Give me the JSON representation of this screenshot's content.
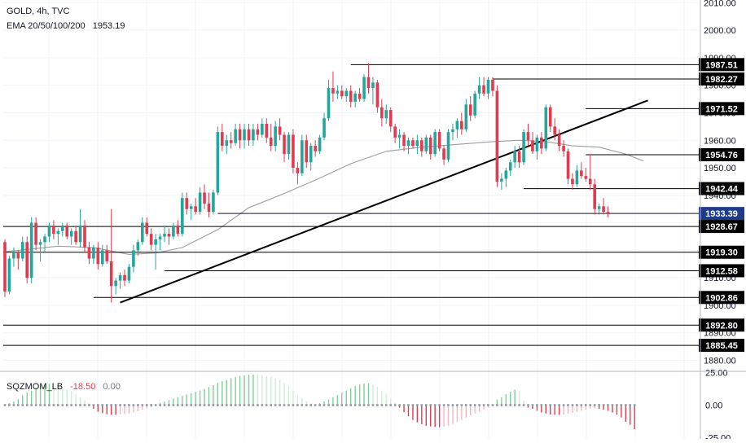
{
  "header": {
    "symbol_line": "GOLD, 4h, TVC",
    "ema_label": "EMA 20/50/100/200",
    "ema_value": "1953.19"
  },
  "oscillator": {
    "label": "SQZMOM_LB",
    "value": "-18.50",
    "value2": "0.00",
    "ticks": [
      "25.00",
      "0.00",
      "-25.00"
    ]
  },
  "colors": {
    "up": "#26a69a",
    "down": "#e23a4e",
    "ema": "#9e9e9e",
    "level": "#000000",
    "current_price_bg": "#1e3a8a",
    "osc_pos": "#80cf98",
    "osc_pos_fade": "#cdeed6",
    "osc_neg": "#e23a4e",
    "osc_neg_fade": "#f4b6c0"
  },
  "chart_data": {
    "type": "candlestick",
    "symbol": "GOLD",
    "timeframe": "4h",
    "source": "TVC",
    "ylim": [
      1876,
      2011
    ],
    "y_ticks": [
      1880,
      1890,
      1900,
      1910,
      1920,
      1930,
      1940,
      1950,
      1960,
      1970,
      1980,
      1990,
      2000,
      2010
    ],
    "grid": true,
    "candles": [
      [
        1923.0,
        1924.0,
        1903.0,
        1905.0
      ],
      [
        1905.0,
        1918.0,
        1904.0,
        1917.0
      ],
      [
        1917.0,
        1921.0,
        1914.0,
        1919.0
      ],
      [
        1919.0,
        1920.0,
        1913.0,
        1917.0
      ],
      [
        1917.0,
        1925.0,
        1916.0,
        1923.0
      ],
      [
        1923.0,
        1925.0,
        1908.0,
        1910.0
      ],
      [
        1910.0,
        1932.0,
        1908.0,
        1930.0
      ],
      [
        1930.0,
        1932.0,
        1920.0,
        1922.0
      ],
      [
        1922.0,
        1924.0,
        1916.0,
        1923.0
      ],
      [
        1923.0,
        1926.0,
        1919.0,
        1925.0
      ],
      [
        1925.0,
        1930.0,
        1923.0,
        1929.0
      ],
      [
        1929.0,
        1931.0,
        1924.0,
        1926.0
      ],
      [
        1926.0,
        1928.0,
        1922.0,
        1927.0
      ],
      [
        1927.0,
        1930.0,
        1925.0,
        1929.0
      ],
      [
        1929.0,
        1930.0,
        1924.0,
        1925.0
      ],
      [
        1925.0,
        1928.0,
        1922.0,
        1927.0
      ],
      [
        1927.0,
        1929.0,
        1922.0,
        1923.0
      ],
      [
        1923.0,
        1935.0,
        1921.0,
        1929.0
      ],
      [
        1929.0,
        1931.0,
        1919.0,
        1921.0
      ],
      [
        1921.0,
        1923.0,
        1915.0,
        1917.0
      ],
      [
        1917.0,
        1922.0,
        1915.0,
        1921.0
      ],
      [
        1921.0,
        1923.0,
        1913.0,
        1915.0
      ],
      [
        1915.0,
        1922.0,
        1914.0,
        1920.0
      ],
      [
        1920.0,
        1922.0,
        1915.0,
        1916.0
      ],
      [
        1916.0,
        1935.0,
        1901.0,
        1907.0
      ],
      [
        1907.0,
        1910.0,
        1904.0,
        1909.0
      ],
      [
        1909.0,
        1912.0,
        1906.0,
        1911.0
      ],
      [
        1911.0,
        1913.0,
        1907.0,
        1909.0
      ],
      [
        1909.0,
        1915.0,
        1908.0,
        1914.0
      ],
      [
        1914.0,
        1922.0,
        1912.0,
        1920.0
      ],
      [
        1920.0,
        1924.0,
        1918.0,
        1923.0
      ],
      [
        1923.0,
        1932.0,
        1922.0,
        1930.0
      ],
      [
        1930.0,
        1932.0,
        1925.0,
        1926.0
      ],
      [
        1926.0,
        1928.0,
        1920.0,
        1922.0
      ],
      [
        1922.0,
        1926.0,
        1913.0,
        1924.0
      ],
      [
        1924.0,
        1926.0,
        1920.0,
        1925.0
      ],
      [
        1925.0,
        1929.0,
        1923.0,
        1926.0
      ],
      [
        1926.0,
        1928.0,
        1922.0,
        1925.0
      ],
      [
        1925.0,
        1930.0,
        1924.0,
        1929.0
      ],
      [
        1929.0,
        1931.0,
        1925.0,
        1926.0
      ],
      [
        1926.0,
        1941.0,
        1925.0,
        1939.0
      ],
      [
        1939.0,
        1941.0,
        1933.0,
        1935.0
      ],
      [
        1935.0,
        1937.0,
        1931.0,
        1936.0
      ],
      [
        1936.0,
        1939.0,
        1933.0,
        1934.0
      ],
      [
        1934.0,
        1943.0,
        1933.0,
        1941.0
      ],
      [
        1941.0,
        1944.0,
        1935.0,
        1937.0
      ],
      [
        1937.0,
        1941.0,
        1932.0,
        1934.0
      ],
      [
        1934.0,
        1942.0,
        1933.0,
        1941.0
      ],
      [
        1941.0,
        1965.0,
        1940.0,
        1963.0
      ],
      [
        1963.0,
        1966.0,
        1956.0,
        1958.0
      ],
      [
        1958.0,
        1962.0,
        1955.0,
        1960.0
      ],
      [
        1960.0,
        1963.0,
        1957.0,
        1959.0
      ],
      [
        1959.0,
        1966.0,
        1958.0,
        1964.0
      ],
      [
        1964.0,
        1966.0,
        1957.0,
        1960.0
      ],
      [
        1960.0,
        1966.0,
        1957.0,
        1964.0
      ],
      [
        1964.0,
        1966.0,
        1958.0,
        1960.0
      ],
      [
        1960.0,
        1966.0,
        1958.0,
        1964.0
      ],
      [
        1964.0,
        1966.0,
        1960.0,
        1962.0
      ],
      [
        1962.0,
        1968.0,
        1961.0,
        1966.0
      ],
      [
        1966.0,
        1968.0,
        1959.0,
        1961.0
      ],
      [
        1961.0,
        1966.0,
        1956.0,
        1958.0
      ],
      [
        1958.0,
        1967.0,
        1956.0,
        1965.0
      ],
      [
        1965.0,
        1968.0,
        1960.0,
        1962.0
      ],
      [
        1962.0,
        1963.0,
        1952.0,
        1955.0
      ],
      [
        1955.0,
        1963.0,
        1953.0,
        1962.0
      ],
      [
        1962.0,
        1964.0,
        1948.0,
        1950.0
      ],
      [
        1950.0,
        1952.0,
        1944.0,
        1948.0
      ],
      [
        1948.0,
        1962.0,
        1947.0,
        1960.0
      ],
      [
        1960.0,
        1962.0,
        1950.0,
        1952.0
      ],
      [
        1952.0,
        1959.0,
        1949.0,
        1958.0
      ],
      [
        1958.0,
        1960.0,
        1954.0,
        1956.0
      ],
      [
        1956.0,
        1962.0,
        1955.0,
        1961.0
      ],
      [
        1961.0,
        1970.0,
        1960.0,
        1968.0
      ],
      [
        1968.0,
        1982.0,
        1967.0,
        1979.0
      ],
      [
        1979.0,
        1985.0,
        1974.0,
        1977.0
      ],
      [
        1977.0,
        1980.0,
        1975.0,
        1978.0
      ],
      [
        1978.0,
        1980.0,
        1975.0,
        1976.0
      ],
      [
        1976.0,
        1979.0,
        1974.0,
        1978.0
      ],
      [
        1978.0,
        1980.0,
        1972.0,
        1974.0
      ],
      [
        1974.0,
        1978.0,
        1972.0,
        1977.0
      ],
      [
        1977.0,
        1979.0,
        1974.0,
        1975.0
      ],
      [
        1975.0,
        1984.0,
        1974.0,
        1983.0
      ],
      [
        1983.0,
        1988.0,
        1977.0,
        1979.0
      ],
      [
        1979.0,
        1983.0,
        1973.0,
        1981.0
      ],
      [
        1981.0,
        1982.0,
        1970.0,
        1972.0
      ],
      [
        1972.0,
        1975.0,
        1965.0,
        1968.0
      ],
      [
        1968.0,
        1973.0,
        1966.0,
        1971.0
      ],
      [
        1971.0,
        1972.0,
        1963.0,
        1965.0
      ],
      [
        1965.0,
        1966.0,
        1959.0,
        1961.0
      ],
      [
        1961.0,
        1964.0,
        1957.0,
        1962.0
      ],
      [
        1962.0,
        1963.0,
        1956.0,
        1958.0
      ],
      [
        1958.0,
        1961.0,
        1955.0,
        1960.0
      ],
      [
        1960.0,
        1961.0,
        1957.0,
        1958.0
      ],
      [
        1958.0,
        1962.0,
        1955.0,
        1960.0
      ],
      [
        1960.0,
        1961.0,
        1954.0,
        1956.0
      ],
      [
        1956.0,
        1962.0,
        1955.0,
        1961.0
      ],
      [
        1961.0,
        1962.0,
        1953.0,
        1955.0
      ],
      [
        1955.0,
        1964.0,
        1954.0,
        1963.0
      ],
      [
        1963.0,
        1964.0,
        1956.0,
        1957.0
      ],
      [
        1957.0,
        1958.0,
        1951.0,
        1953.0
      ],
      [
        1953.0,
        1964.0,
        1952.0,
        1963.0
      ],
      [
        1963.0,
        1966.0,
        1960.0,
        1964.0
      ],
      [
        1964.0,
        1968.0,
        1961.0,
        1967.0
      ],
      [
        1967.0,
        1970.0,
        1962.0,
        1964.0
      ],
      [
        1964.0,
        1975.0,
        1963.0,
        1973.0
      ],
      [
        1973.0,
        1976.0,
        1967.0,
        1969.0
      ],
      [
        1969.0,
        1978.0,
        1968.0,
        1977.0
      ],
      [
        1977.0,
        1983.0,
        1975.0,
        1980.0
      ],
      [
        1980.0,
        1983.0,
        1976.0,
        1977.0
      ],
      [
        1977.0,
        1983.0,
        1975.0,
        1982.0
      ],
      [
        1982.0,
        1983.0,
        1976.0,
        1978.0
      ],
      [
        1978.0,
        1980.0,
        1943.0,
        1945.0
      ],
      [
        1945.0,
        1948.0,
        1942.0,
        1946.0
      ],
      [
        1946.0,
        1950.0,
        1943.0,
        1949.0
      ],
      [
        1949.0,
        1953.0,
        1947.0,
        1952.0
      ],
      [
        1952.0,
        1958.0,
        1950.0,
        1956.0
      ],
      [
        1956.0,
        1958.0,
        1950.0,
        1952.0
      ],
      [
        1952.0,
        1964.0,
        1951.0,
        1963.0
      ],
      [
        1963.0,
        1966.0,
        1958.0,
        1960.0
      ],
      [
        1960.0,
        1963.0,
        1955.0,
        1956.0
      ],
      [
        1956.0,
        1962.0,
        1953.0,
        1961.0
      ],
      [
        1961.0,
        1963.0,
        1955.0,
        1957.0
      ],
      [
        1957.0,
        1973.0,
        1956.0,
        1972.0
      ],
      [
        1972.0,
        1973.0,
        1963.0,
        1965.0
      ],
      [
        1965.0,
        1968.0,
        1960.0,
        1962.0
      ],
      [
        1962.0,
        1964.0,
        1956.0,
        1958.0
      ],
      [
        1958.0,
        1960.0,
        1954.0,
        1956.0
      ],
      [
        1956.0,
        1957.0,
        1944.0,
        1946.0
      ],
      [
        1946.0,
        1948.0,
        1942.0,
        1944.0
      ],
      [
        1944.0,
        1951.0,
        1943.0,
        1949.0
      ],
      [
        1949.0,
        1952.0,
        1946.0,
        1947.0
      ],
      [
        1947.0,
        1950.0,
        1945.0,
        1946.0
      ],
      [
        1946.0,
        1955.0,
        1942.0,
        1944.0
      ],
      [
        1944.0,
        1946.0,
        1933.0,
        1935.0
      ],
      [
        1935.0,
        1937.0,
        1933.0,
        1936.0
      ],
      [
        1936.0,
        1939.0,
        1933.0,
        1934.0
      ],
      [
        1934.0,
        1936.0,
        1932.0,
        1933.4
      ]
    ],
    "ema": [
      [
        0,
        1919.5
      ],
      [
        12,
        1921.5
      ],
      [
        20,
        1921.0
      ],
      [
        28,
        1918.5
      ],
      [
        34,
        1919.0
      ],
      [
        40,
        1921.0
      ],
      [
        48,
        1927.5
      ],
      [
        55,
        1935.5
      ],
      [
        62,
        1940.0
      ],
      [
        70,
        1945.5
      ],
      [
        78,
        1951.5
      ],
      [
        86,
        1956.0
      ],
      [
        94,
        1957.5
      ],
      [
        102,
        1958.5
      ],
      [
        110,
        1959.5
      ],
      [
        116,
        1960.0
      ],
      [
        122,
        1959.5
      ],
      [
        128,
        1958.0
      ],
      [
        134,
        1957.5
      ],
      [
        140,
        1955.0
      ],
      [
        144,
        1952.5
      ]
    ],
    "trendline": [
      [
        26,
        1901.0
      ],
      [
        145,
        1974.5
      ]
    ],
    "levels": [
      {
        "value": 1987.51,
        "label": "1987.51",
        "x_start": 78
      },
      {
        "value": 1982.27,
        "label": "1982.27",
        "x_start": 110
      },
      {
        "value": 1971.52,
        "label": "1971.52",
        "x_start": 131
      },
      {
        "value": 1954.76,
        "label": "1954.76",
        "x_start": 131
      },
      {
        "value": 1942.44,
        "label": "1942.44",
        "x_start": 117
      },
      {
        "value": 1933.39,
        "label": "1933.39",
        "x_start": 48,
        "current": true
      },
      {
        "value": 1928.67,
        "label": "1928.67",
        "x_start": 0
      },
      {
        "value": 1919.3,
        "label": "1919.30",
        "x_start": 0
      },
      {
        "value": 1912.58,
        "label": "1912.58",
        "x_start": 36
      },
      {
        "value": 1902.86,
        "label": "1902.86",
        "x_start": 20
      },
      {
        "value": 1892.8,
        "label": "1892.80",
        "x_start": 0
      },
      {
        "value": 1885.45,
        "label": "1885.45",
        "x_start": 0
      }
    ],
    "oscillator": {
      "name": "SQZMOM_LB",
      "ylim": [
        -26,
        26
      ],
      "ticks": [
        25,
        0,
        -25
      ],
      "values": [
        1.0,
        1.5,
        2.8,
        4.5,
        7.5,
        9.7,
        11.0,
        13.3,
        15.2,
        16.1,
        16.4,
        15.9,
        14.7,
        13.5,
        12.4,
        10.8,
        8.3,
        5.9,
        3.8,
        1.4,
        -2.8,
        -5.1,
        -6.2,
        -7.0,
        -7.4,
        -7.4,
        -7.1,
        -6.8,
        -6.2,
        -5.6,
        -4.7,
        -3.6,
        -2.5,
        -1.5,
        0.6,
        1.7,
        2.8,
        3.9,
        5.0,
        6.1,
        7.1,
        8.1,
        9.2,
        10.3,
        11.3,
        12.4,
        13.9,
        15.3,
        17.2,
        18.5,
        19.4,
        20.8,
        21.7,
        22.5,
        23.1,
        23.5,
        23.6,
        23.4,
        22.9,
        22.4,
        21.6,
        20.6,
        19.3,
        17.2,
        14.3,
        11.2,
        8.1,
        5.3,
        3.0,
        1.4,
        0.5,
        1.5,
        3.0,
        4.4,
        6.1,
        7.7,
        9.6,
        11.2,
        13.0,
        14.7,
        15.9,
        16.6,
        16.8,
        15.7,
        13.9,
        11.2,
        8.7,
        5.3,
        1.6,
        -2.0,
        -5.4,
        -8.6,
        -11.4,
        -13.2,
        -14.7,
        -15.9,
        -16.4,
        -16.8,
        -17.0,
        -16.6,
        -15.8,
        -14.5,
        -13.0,
        -11.3,
        -9.6,
        -7.9,
        -6.4,
        -4.9,
        -3.3,
        -1.7,
        -0.5,
        4.3,
        6.1,
        8.5,
        10.2,
        12.0,
        11.3,
        3.5,
        -1.9,
        -2.8,
        -4.3,
        -5.6,
        -6.4,
        -7.2,
        -7.5,
        -7.5,
        -7.2,
        -6.6,
        -5.9,
        -5.1,
        -4.3,
        -3.4,
        -2.8,
        -2.4,
        -2.9,
        -3.5,
        -4.4,
        -5.6,
        -7.3,
        -9.5,
        -12.8,
        -15.2,
        -18.5
      ]
    }
  }
}
